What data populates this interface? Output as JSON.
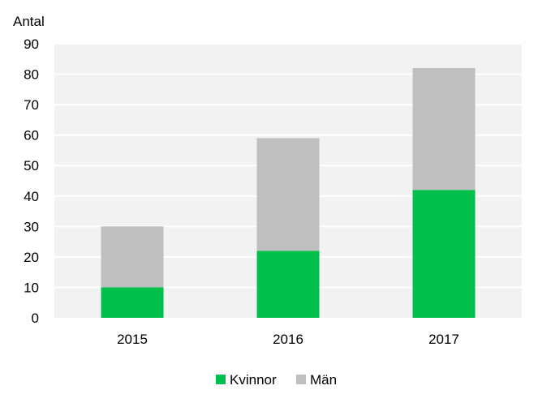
{
  "chart_data": {
    "type": "bar",
    "stacked": true,
    "ylabel": "Antal",
    "categories": [
      "2015",
      "2016",
      "2017"
    ],
    "series": [
      {
        "name": "Kvinnor",
        "values": [
          10,
          22,
          42
        ],
        "color": "#00c04b"
      },
      {
        "name": "Män",
        "values": [
          20,
          37,
          40
        ],
        "color": "#bfbfbf"
      }
    ],
    "ylim": [
      0,
      90
    ],
    "yticks": [
      "0",
      "10",
      "20",
      "30",
      "40",
      "50",
      "60",
      "70",
      "80",
      "90"
    ],
    "grid": true,
    "plot_background": "#f2f2f2",
    "gridline_color": "#ffffff",
    "legend_position": "bottom"
  }
}
